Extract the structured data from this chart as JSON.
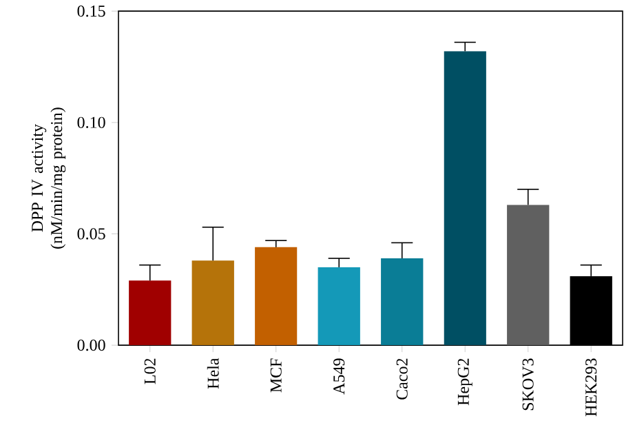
{
  "chart_data": {
    "type": "bar",
    "ylabel": "DPP IV activity (nM/min/mg protein)",
    "categories": [
      "L02",
      "Hela",
      "MCF",
      "A549",
      "Caco2",
      "HepG2",
      "SKOV3",
      "HEK293"
    ],
    "values": [
      0.029,
      0.038,
      0.044,
      0.035,
      0.039,
      0.132,
      0.063,
      0.031
    ],
    "errors": [
      [
        0.029,
        0.036
      ],
      [
        0.038,
        0.053
      ],
      [
        0.044,
        0.047
      ],
      [
        0.035,
        0.039
      ],
      [
        0.039,
        0.046
      ],
      [
        0.132,
        0.136
      ],
      [
        0.063,
        0.07
      ],
      [
        0.031,
        0.036
      ]
    ],
    "colors": [
      "#a00000",
      "#b5730a",
      "#c26000",
      "#1499b8",
      "#0a7d96",
      "#004f63",
      "#606060",
      "#000000"
    ],
    "ylim": [
      0,
      0.15
    ],
    "yticks": [
      {
        "value": 0,
        "label": "0.00"
      },
      {
        "value": 0.05,
        "label": "0.05"
      },
      {
        "value": 0.1,
        "label": "0.10"
      },
      {
        "value": 0.15,
        "label": "0.15"
      }
    ],
    "grid": false
  }
}
